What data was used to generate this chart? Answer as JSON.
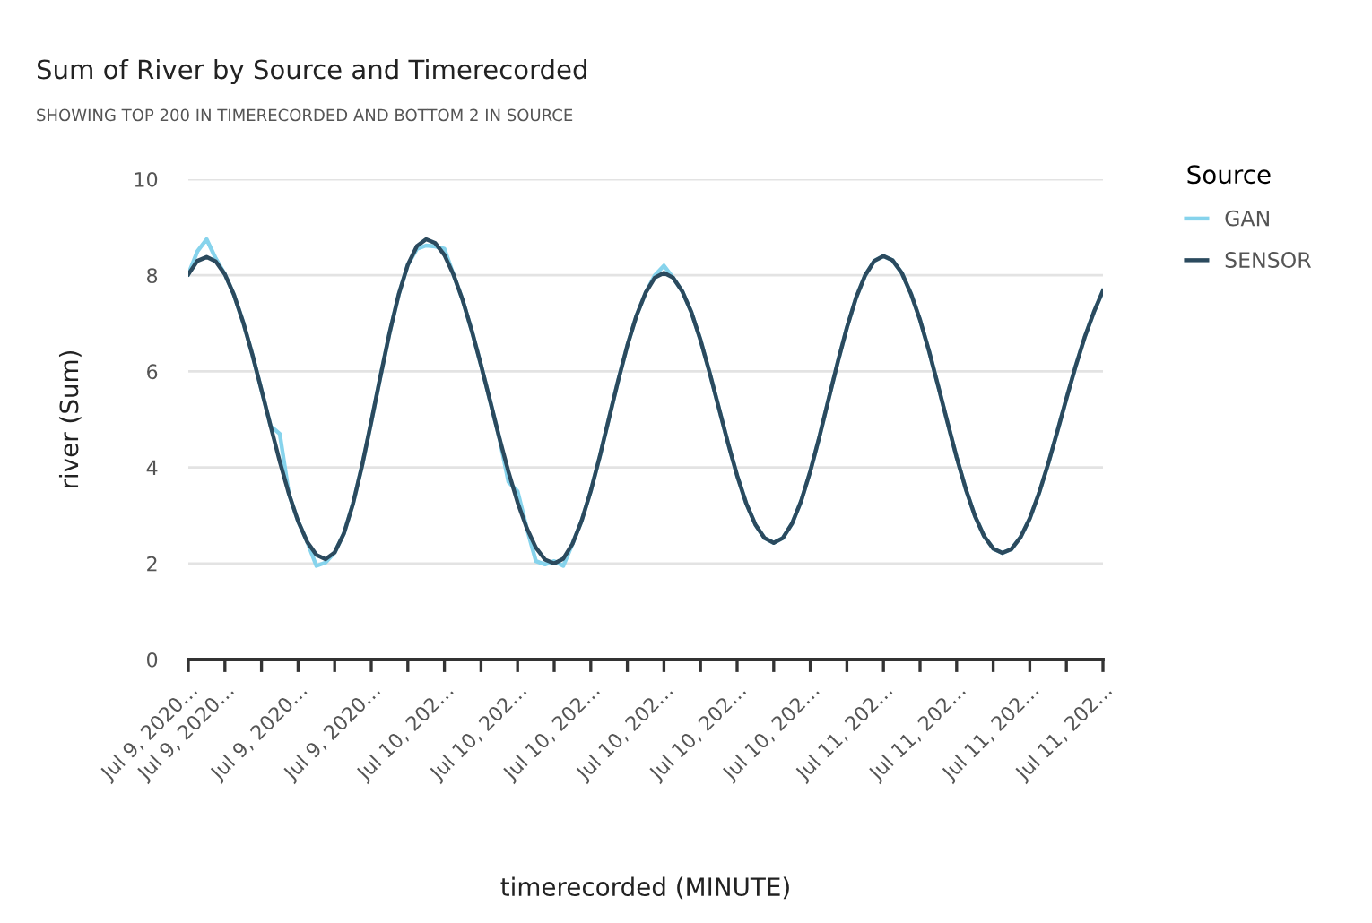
{
  "chart_data": {
    "type": "line",
    "title": "Sum of River by Source and Timerecorded",
    "subtitle": "SHOWING TOP 200 IN TIMERECORDED AND BOTTOM 2 IN SOURCE",
    "xlabel": "timerecorded (MINUTE)",
    "ylabel": "river (Sum)",
    "legend_title": "Source",
    "categories": [
      "Jul 9, 2020…",
      null,
      null,
      null,
      "Jul 9, 2020…",
      null,
      null,
      null,
      null,
      null,
      null,
      null,
      "Jul 9, 2020…",
      null,
      null,
      null,
      null,
      null,
      null,
      null,
      "Jul 9, 2020…",
      null,
      null,
      null,
      null,
      null,
      null,
      null,
      "Jul 10, 202…",
      null,
      null,
      null,
      null,
      null,
      null,
      null,
      "Jul 10, 202…",
      null,
      null,
      null,
      null,
      null,
      null,
      null,
      "Jul 10, 202…",
      null,
      null,
      null,
      null,
      null,
      null,
      null,
      "Jul 10, 202…",
      null,
      null,
      null,
      null,
      null,
      null,
      null,
      "Jul 10, 202…",
      null,
      null,
      null,
      null,
      null,
      null,
      null,
      "Jul 10, 202…",
      null,
      null,
      null,
      null,
      null,
      null,
      null,
      "Jul 11, 202…",
      null,
      null,
      null,
      null,
      null,
      null,
      null,
      "Jul 11, 202…",
      null,
      null,
      null,
      null,
      null,
      null,
      null,
      "Jul 11, 202…",
      null,
      null,
      null,
      null,
      null,
      null,
      null,
      "Jul 11, 202…"
    ],
    "series": [
      {
        "name": "GAN",
        "color": "#86d3ec",
        "values": [
          8.02,
          8.5,
          8.75,
          8.35,
          8.02,
          7.59,
          7.02,
          6.35,
          5.61,
          4.86,
          4.7,
          3.45,
          2.88,
          2.45,
          1.95,
          2.02,
          2.23,
          2.62,
          3.24,
          4.04,
          4.95,
          5.89,
          6.8,
          7.6,
          8.22,
          8.55,
          8.62,
          8.6,
          8.55,
          8.01,
          7.48,
          6.84,
          6.13,
          5.38,
          4.62,
          3.7,
          3.5,
          2.74,
          2.05,
          1.98,
          2.05,
          1.95,
          2.41,
          2.89,
          3.51,
          4.24,
          5.03,
          5.81,
          6.54,
          7.16,
          7.64,
          8.0,
          8.2,
          7.95,
          7.67,
          7.23,
          6.65,
          5.97,
          5.24,
          4.51,
          3.83,
          3.25,
          2.81,
          2.53,
          2.43,
          2.53,
          2.83,
          3.3,
          3.92,
          4.64,
          5.42,
          6.19,
          6.91,
          7.53,
          8.0,
          8.3,
          8.4,
          8.31,
          8.05,
          7.62,
          7.07,
          6.41,
          5.68,
          4.94,
          4.21,
          3.55,
          2.99,
          2.57,
          2.31,
          2.22,
          2.3,
          2.55,
          2.94,
          3.46,
          4.07,
          4.74,
          5.43,
          6.1,
          6.71,
          7.23,
          7.68
        ]
      },
      {
        "name": "SENSOR",
        "color": "#2b4a5e",
        "values": [
          8.02,
          8.3,
          8.38,
          8.29,
          8.02,
          7.59,
          7.02,
          6.35,
          5.61,
          4.86,
          4.12,
          3.45,
          2.88,
          2.45,
          2.18,
          2.09,
          2.23,
          2.62,
          3.24,
          4.04,
          4.95,
          5.89,
          6.8,
          7.6,
          8.22,
          8.61,
          8.75,
          8.67,
          8.42,
          8.01,
          7.48,
          6.84,
          6.13,
          5.38,
          4.62,
          3.91,
          3.27,
          2.74,
          2.33,
          2.08,
          2.0,
          2.1,
          2.41,
          2.89,
          3.51,
          4.24,
          5.03,
          5.81,
          6.54,
          7.16,
          7.64,
          7.95,
          8.05,
          7.95,
          7.67,
          7.23,
          6.65,
          5.97,
          5.24,
          4.51,
          3.83,
          3.25,
          2.81,
          2.53,
          2.43,
          2.53,
          2.83,
          3.3,
          3.92,
          4.64,
          5.42,
          6.19,
          6.91,
          7.53,
          8.0,
          8.3,
          8.4,
          8.31,
          8.05,
          7.62,
          7.07,
          6.41,
          5.68,
          4.94,
          4.21,
          3.55,
          2.99,
          2.57,
          2.31,
          2.22,
          2.3,
          2.55,
          2.94,
          3.46,
          4.07,
          4.74,
          5.43,
          6.1,
          6.71,
          7.23,
          7.68
        ]
      }
    ],
    "ylim": [
      0,
      10
    ],
    "yticks": [
      0,
      2,
      4,
      6,
      8,
      10
    ],
    "grid": "y",
    "legend": "right",
    "marker": "none",
    "line_style": "solid"
  }
}
